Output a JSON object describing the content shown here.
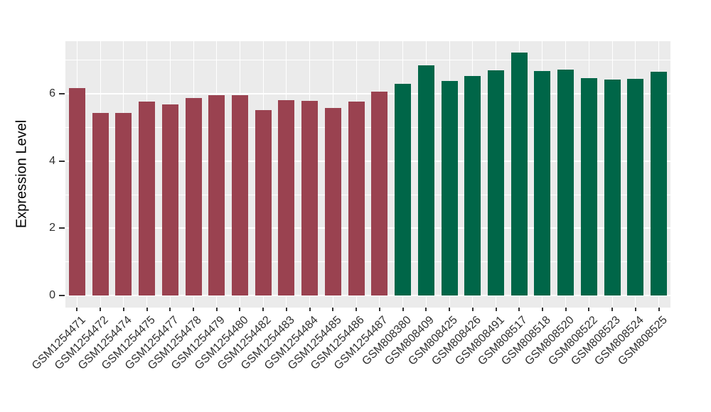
{
  "chart_data": {
    "type": "bar",
    "title": "",
    "xlabel": "",
    "ylabel": "Expression Level",
    "legend": null,
    "grid": true,
    "panel_background": "#EBEBEB",
    "grid_color": "#FFFFFF",
    "tick_color": "#333333",
    "axis_text_color": "#303030",
    "ylim": [
      -0.38,
      7.57
    ],
    "yticks": [
      0,
      2,
      4,
      6
    ],
    "y_minor_gridlines": [
      1,
      3,
      5,
      7
    ],
    "categories": [
      "GSM1254471",
      "GSM1254472",
      "GSM1254474",
      "GSM1254475",
      "GSM1254477",
      "GSM1254478",
      "GSM1254479",
      "GSM1254480",
      "GSM1254482",
      "GSM1254483",
      "GSM1254484",
      "GSM1254485",
      "GSM1254486",
      "GSM1254487",
      "GSM808380",
      "GSM808409",
      "GSM808425",
      "GSM808426",
      "GSM808491",
      "GSM808517",
      "GSM808518",
      "GSM808520",
      "GSM808522",
      "GSM808523",
      "GSM808524",
      "GSM808525"
    ],
    "values": [
      6.17,
      5.44,
      5.44,
      5.78,
      5.68,
      5.87,
      5.96,
      5.97,
      5.52,
      5.81,
      5.8,
      5.59,
      5.78,
      6.07,
      6.29,
      6.84,
      6.38,
      6.54,
      6.7,
      7.24,
      6.68,
      6.72,
      6.46,
      6.42,
      6.45,
      6.65
    ],
    "bar_groups": [
      0,
      0,
      0,
      0,
      0,
      0,
      0,
      0,
      0,
      0,
      0,
      0,
      0,
      0,
      1,
      1,
      1,
      1,
      1,
      1,
      1,
      1,
      1,
      1,
      1,
      1
    ],
    "group_colors": [
      "#9A4250",
      "#006648"
    ]
  }
}
